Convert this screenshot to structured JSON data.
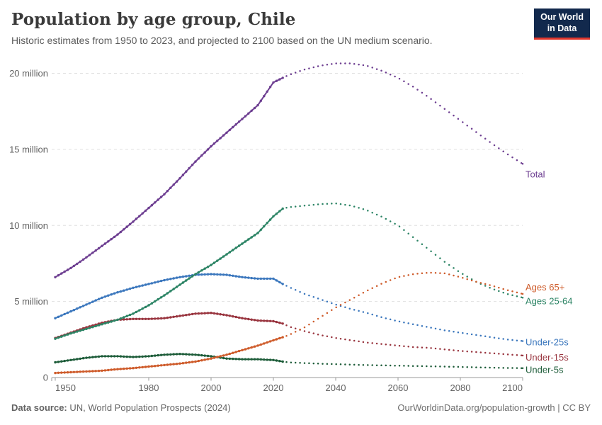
{
  "header": {
    "title": "Population by age group, Chile",
    "subtitle": "Historic estimates from 1950 to 2023, and projected to 2100 based on the UN medium scenario.",
    "logo": {
      "line1": "Our World",
      "line2": "in Data",
      "bg_color": "#12294d",
      "accent_color": "#e0362c"
    }
  },
  "footer": {
    "source_label": "Data source:",
    "source_text": " UN, World Population Prospects (2024)",
    "right_text": "OurWorldinData.org/population-growth | CC BY"
  },
  "chart_data": {
    "type": "line",
    "title": "Population by age group, Chile",
    "unit": "millions of people",
    "grid": "horizontal-dashed",
    "legend_position": "right-of-line-ends",
    "projection_from": 2023,
    "xlim": [
      1949,
      2100
    ],
    "ylim": [
      0,
      21
    ],
    "xticks": [
      1950,
      1980,
      2000,
      2020,
      2040,
      2060,
      2080,
      2100
    ],
    "yticks": [
      {
        "value": 0,
        "label": "0"
      },
      {
        "value": 5,
        "label": "5 million"
      },
      {
        "value": 10,
        "label": "10 million"
      },
      {
        "value": 15,
        "label": "15 million"
      },
      {
        "value": 20,
        "label": "20 million"
      }
    ],
    "x": [
      1950,
      1955,
      1960,
      1965,
      1970,
      1975,
      1980,
      1985,
      1990,
      1995,
      2000,
      2005,
      2010,
      2015,
      2020,
      2023,
      2025,
      2030,
      2035,
      2040,
      2045,
      2050,
      2055,
      2060,
      2065,
      2070,
      2075,
      2080,
      2085,
      2090,
      2095,
      2100
    ],
    "series": [
      {
        "name": "Total",
        "color": "#6d3e91",
        "values_millions": [
          6.6,
          7.2,
          7.9,
          8.65,
          9.4,
          10.25,
          11.15,
          12.05,
          13.1,
          14.2,
          15.2,
          16.1,
          17.0,
          17.9,
          19.4,
          19.7,
          19.9,
          20.25,
          20.5,
          20.65,
          20.65,
          20.5,
          20.15,
          19.7,
          19.1,
          18.4,
          17.65,
          16.9,
          16.15,
          15.4,
          14.7,
          14.05
        ]
      },
      {
        "name": "Ages 65+",
        "color": "#ce5b2a",
        "values_millions": [
          0.3,
          0.35,
          0.4,
          0.45,
          0.55,
          0.62,
          0.72,
          0.82,
          0.92,
          1.05,
          1.25,
          1.5,
          1.8,
          2.1,
          2.45,
          2.65,
          2.8,
          3.3,
          3.95,
          4.6,
          5.15,
          5.7,
          6.2,
          6.6,
          6.8,
          6.9,
          6.85,
          6.6,
          6.3,
          6.05,
          5.75,
          5.5
        ]
      },
      {
        "name": "Ages 25-64",
        "color": "#2c8465",
        "values_millions": [
          2.55,
          2.9,
          3.2,
          3.5,
          3.8,
          4.2,
          4.75,
          5.4,
          6.1,
          6.8,
          7.4,
          8.1,
          8.8,
          9.5,
          10.6,
          11.1,
          11.2,
          11.3,
          11.4,
          11.45,
          11.3,
          11.0,
          10.55,
          10.0,
          9.2,
          8.4,
          7.6,
          6.9,
          6.3,
          5.85,
          5.5,
          5.25
        ]
      },
      {
        "name": "Under-25s",
        "color": "#3b77bd",
        "values_millions": [
          3.9,
          4.35,
          4.8,
          5.25,
          5.6,
          5.9,
          6.15,
          6.4,
          6.6,
          6.75,
          6.8,
          6.75,
          6.6,
          6.5,
          6.5,
          6.15,
          5.95,
          5.5,
          5.15,
          4.8,
          4.5,
          4.25,
          3.95,
          3.7,
          3.5,
          3.3,
          3.1,
          2.95,
          2.8,
          2.65,
          2.5,
          2.4
        ]
      },
      {
        "name": "Under-15s",
        "color": "#99353f",
        "values_millions": [
          2.6,
          2.95,
          3.3,
          3.6,
          3.8,
          3.85,
          3.85,
          3.9,
          4.05,
          4.2,
          4.25,
          4.1,
          3.9,
          3.75,
          3.7,
          3.55,
          3.35,
          3.05,
          2.8,
          2.6,
          2.45,
          2.3,
          2.2,
          2.1,
          2.0,
          1.95,
          1.85,
          1.75,
          1.68,
          1.6,
          1.52,
          1.45
        ]
      },
      {
        "name": "Under-5s",
        "color": "#1d5c39",
        "values_millions": [
          1.0,
          1.15,
          1.3,
          1.4,
          1.4,
          1.35,
          1.4,
          1.5,
          1.55,
          1.5,
          1.4,
          1.25,
          1.2,
          1.2,
          1.15,
          1.05,
          1.0,
          0.95,
          0.91,
          0.88,
          0.85,
          0.82,
          0.8,
          0.78,
          0.76,
          0.74,
          0.72,
          0.7,
          0.67,
          0.65,
          0.63,
          0.62
        ]
      }
    ]
  }
}
